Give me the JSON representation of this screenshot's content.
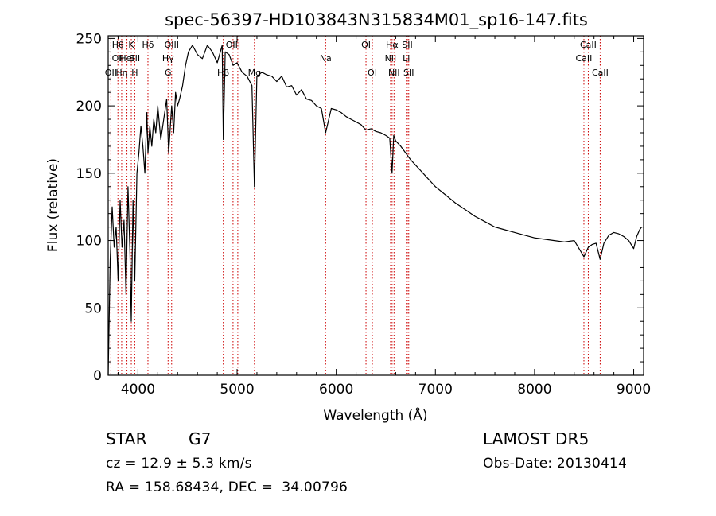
{
  "chart_data": {
    "type": "line",
    "title": "spec-56397-HD103843N315834M01_sp16-147.fits",
    "xlabel": "Wavelength (Å)",
    "ylabel": "Flux (relative)",
    "xlim": [
      3700,
      9100
    ],
    "ylim": [
      0,
      252
    ],
    "xticks": [
      4000,
      5000,
      6000,
      7000,
      8000,
      9000
    ],
    "yticks": [
      0,
      50,
      100,
      150,
      200,
      250
    ],
    "series": [
      {
        "x": [
          3700,
          3720,
          3740,
          3760,
          3780,
          3800,
          3820,
          3840,
          3860,
          3880,
          3900,
          3920,
          3933,
          3950,
          3968,
          3990,
          4010,
          4030,
          4050,
          4070,
          4090,
          4101,
          4120,
          4140,
          4160,
          4180,
          4200,
          4230,
          4260,
          4290,
          4310,
          4340,
          4360,
          4380,
          4400,
          4420,
          4450,
          4480,
          4510,
          4550,
          4600,
          4650,
          4700,
          4750,
          4800,
          4850,
          4861,
          4880,
          4920,
          4960,
          5000,
          5050,
          5100,
          5150,
          5175,
          5200,
          5250,
          5300,
          5350,
          5400,
          5450,
          5500,
          5550,
          5600,
          5650,
          5700,
          5750,
          5800,
          5850,
          5893,
          5950,
          6000,
          6050,
          6100,
          6150,
          6200,
          6250,
          6300,
          6350,
          6400,
          6450,
          6500,
          6540,
          6563,
          6580,
          6600,
          6650,
          6700,
          6750,
          6800,
          6850,
          6900,
          6950,
          7000,
          7100,
          7200,
          7300,
          7400,
          7500,
          7600,
          7700,
          7800,
          7900,
          8000,
          8100,
          8200,
          8300,
          8400,
          8498,
          8542,
          8580,
          8620,
          8662,
          8700,
          8750,
          8800,
          8850,
          8900,
          8950,
          9000,
          9030,
          9060,
          9080
        ],
        "y": [
          0,
          85,
          125,
          95,
          110,
          70,
          130,
          95,
          115,
          60,
          140,
          90,
          40,
          130,
          70,
          150,
          165,
          185,
          170,
          150,
          195,
          165,
          185,
          170,
          190,
          180,
          200,
          175,
          190,
          205,
          165,
          200,
          180,
          210,
          200,
          205,
          215,
          230,
          240,
          245,
          238,
          235,
          245,
          240,
          232,
          245,
          175,
          240,
          238,
          230,
          232,
          225,
          222,
          215,
          140,
          222,
          225,
          223,
          222,
          218,
          222,
          214,
          215,
          208,
          212,
          205,
          204,
          200,
          198,
          180,
          198,
          197,
          195,
          192,
          190,
          188,
          186,
          182,
          183,
          181,
          180,
          178,
          176,
          150,
          178,
          174,
          170,
          165,
          160,
          156,
          152,
          148,
          144,
          140,
          134,
          128,
          123,
          118,
          114,
          110,
          108,
          106,
          104,
          102,
          101,
          100,
          99,
          100,
          88,
          95,
          97,
          98,
          86,
          98,
          104,
          106,
          105,
          103,
          100,
          94,
          103,
          108,
          110
        ]
      }
    ],
    "line_markers": [
      {
        "wl": 3727,
        "labels": [
          "OII"
        ],
        "rows": [
          2
        ]
      },
      {
        "wl": 3798,
        "labels": [
          "Hθ",
          "OII"
        ],
        "rows": [
          0,
          1
        ]
      },
      {
        "wl": 3836,
        "labels": [
          "Hη"
        ],
        "rows": [
          2
        ]
      },
      {
        "wl": 3889,
        "labels": [
          "HeI"
        ],
        "rows": [
          1
        ]
      },
      {
        "wl": 3933,
        "labels": [
          "K"
        ],
        "rows": [
          0
        ]
      },
      {
        "wl": 3968,
        "labels": [
          "SII",
          "H"
        ],
        "rows": [
          1,
          2
        ]
      },
      {
        "wl": 4101,
        "labels": [
          "Hδ"
        ],
        "rows": [
          0
        ]
      },
      {
        "wl": 4304,
        "labels": [
          "Hγ",
          "G"
        ],
        "rows": [
          1,
          2
        ]
      },
      {
        "wl": 4340,
        "labels": [
          "OIII"
        ],
        "rows": [
          0
        ]
      },
      {
        "wl": 4861,
        "labels": [
          "Hβ"
        ],
        "rows": [
          2
        ]
      },
      {
        "wl": 4959,
        "labels": [
          "OIII"
        ],
        "rows": [
          0
        ]
      },
      {
        "wl": 5007,
        "labels": [],
        "rows": []
      },
      {
        "wl": 5175,
        "labels": [
          "Mg"
        ],
        "rows": [
          2
        ]
      },
      {
        "wl": 5893,
        "labels": [
          "Na"
        ],
        "rows": [
          1
        ]
      },
      {
        "wl": 6300,
        "labels": [
          "OI"
        ],
        "rows": [
          0
        ]
      },
      {
        "wl": 6364,
        "labels": [
          "OI"
        ],
        "rows": [
          2
        ]
      },
      {
        "wl": 6548,
        "labels": [
          "NII"
        ],
        "rows": [
          1
        ]
      },
      {
        "wl": 6563,
        "labels": [
          "Hα"
        ],
        "rows": [
          0
        ]
      },
      {
        "wl": 6583,
        "labels": [
          "NII"
        ],
        "rows": [
          2
        ]
      },
      {
        "wl": 6707,
        "labels": [
          "Li"
        ],
        "rows": [
          1
        ]
      },
      {
        "wl": 6717,
        "labels": [
          "SII"
        ],
        "rows": [
          0
        ]
      },
      {
        "wl": 6731,
        "labels": [
          "SII"
        ],
        "rows": [
          2
        ]
      },
      {
        "wl": 8498,
        "labels": [
          "CaII"
        ],
        "rows": [
          1
        ]
      },
      {
        "wl": 8542,
        "labels": [
          "CaII"
        ],
        "rows": [
          0
        ]
      },
      {
        "wl": 8662,
        "labels": [
          "CaII"
        ],
        "rows": [
          2
        ]
      }
    ],
    "marker_color": "#cc0000"
  },
  "info": {
    "object_class": "STAR",
    "subclass": "G7",
    "redshift": "cz = 12.9 ± 5.3 km/s",
    "coords": "RA = 158.68434, DEC =  34.00796",
    "survey": "LAMOST DR5",
    "obs_date": "Obs-Date: 20130414"
  }
}
